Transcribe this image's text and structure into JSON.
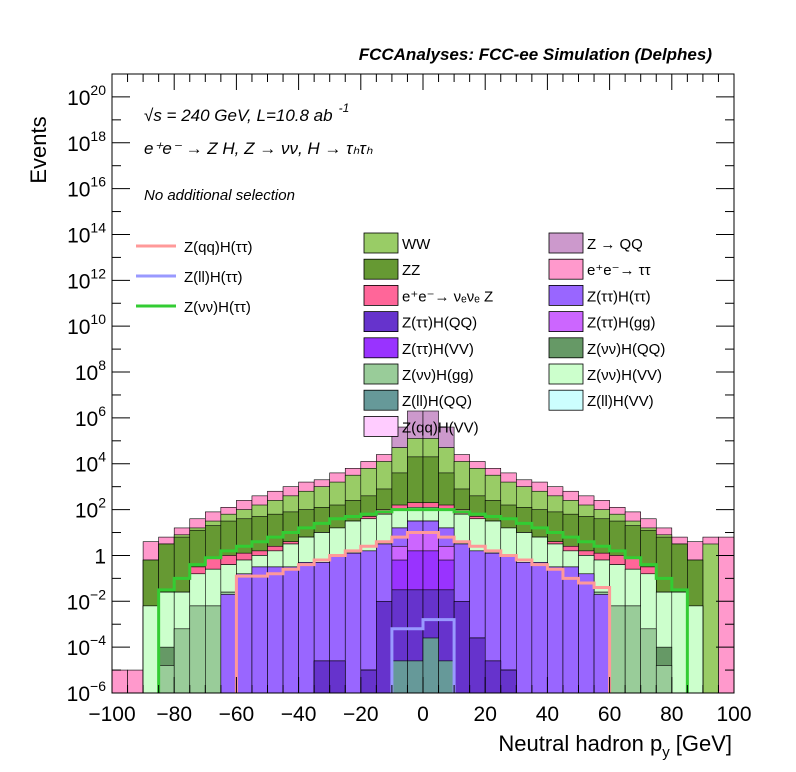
{
  "chart_data": {
    "type": "histogram",
    "title": "FCCAnalyses: FCC-ee Simulation (Delphes)",
    "xlabel": "Neutral hadron p",
    "xlabel_sub": "y",
    "xlabel_unit": "[GeV]",
    "ylabel": "Events",
    "xlim": [
      -100,
      100
    ],
    "ylim": [
      1e-06,
      1e+21
    ],
    "yscale": "log",
    "bin_width": 5,
    "x_ticks": [
      {
        "value": -100,
        "label": "−100"
      },
      {
        "value": -80,
        "label": "−80"
      },
      {
        "value": -60,
        "label": "−60"
      },
      {
        "value": -40,
        "label": "−40"
      },
      {
        "value": -20,
        "label": "−20"
      },
      {
        "value": 0,
        "label": "0"
      },
      {
        "value": 20,
        "label": "20"
      },
      {
        "value": 40,
        "label": "40"
      },
      {
        "value": 60,
        "label": "60"
      },
      {
        "value": 80,
        "label": "80"
      },
      {
        "value": 100,
        "label": "100"
      }
    ],
    "y_ticks": [
      {
        "value": 1e-06,
        "base": "10",
        "exp": "−6"
      },
      {
        "value": 0.0001,
        "base": "10",
        "exp": "−4"
      },
      {
        "value": 0.01,
        "base": "10",
        "exp": "−2"
      },
      {
        "value": 1,
        "base": "1",
        "exp": ""
      },
      {
        "value": 100.0,
        "base": "10",
        "exp": "2"
      },
      {
        "value": 10000.0,
        "base": "10",
        "exp": "4"
      },
      {
        "value": 1000000.0,
        "base": "10",
        "exp": "6"
      },
      {
        "value": 100000000.0,
        "base": "10",
        "exp": "8"
      },
      {
        "value": 10000000000.0,
        "base": "10",
        "exp": "10"
      },
      {
        "value": 1000000000000.0,
        "base": "10",
        "exp": "12"
      },
      {
        "value": 100000000000000.0,
        "base": "10",
        "exp": "14"
      },
      {
        "value": 1e+16,
        "base": "10",
        "exp": "16"
      },
      {
        "value": 1e+18,
        "base": "10",
        "exp": "18"
      },
      {
        "value": 1e+20,
        "base": "10",
        "exp": "20"
      }
    ],
    "annotations": {
      "energy": "√s = 240 GeV, L=10.8 ab",
      "energy_sup": "-1",
      "process": "e⁺e⁻ → Z H, Z → νν, H → τₕτₕ",
      "selection": "No additional selection"
    },
    "stack_note": "Stacked backgrounds listed bottom to top; values are log10 of each layer's cumulative (stacked) top edge per 5 GeV bin from -100 to 100; null = empty bin",
    "stacked": [
      {
        "name": "Z(ll)H(VV)",
        "color": "#ccfefe",
        "log10_top": [
          null,
          null,
          null,
          null,
          null,
          null,
          null,
          null,
          null,
          null,
          null,
          null,
          null,
          null,
          null,
          null,
          null,
          null,
          -6,
          -6,
          -6,
          -6,
          null,
          null,
          null,
          null,
          null,
          null,
          null,
          null,
          null,
          null,
          null,
          null,
          null,
          null,
          null,
          null,
          null,
          null
        ]
      },
      {
        "name": "Z(ll)H(QQ)",
        "color": "#669999",
        "log10_top": [
          null,
          null,
          null,
          null,
          null,
          null,
          null,
          null,
          null,
          null,
          null,
          null,
          null,
          null,
          null,
          null,
          null,
          null,
          -4.6,
          -4.6,
          -3.6,
          -4.6,
          null,
          null,
          null,
          null,
          null,
          null,
          null,
          null,
          null,
          null,
          null,
          null,
          null,
          null,
          null,
          null,
          null,
          null
        ]
      },
      {
        "name": "Z(ττ)H(QQ)",
        "color": "#6633cc",
        "log10_top": [
          null,
          null,
          null,
          null,
          null,
          null,
          null,
          null,
          null,
          null,
          null,
          null,
          null,
          -4.6,
          -4.6,
          null,
          -5,
          -2,
          -1.5,
          -1.5,
          -1.5,
          -1.5,
          -2,
          -3.6,
          -4.6,
          -5,
          null,
          null,
          null,
          null,
          null,
          null,
          null,
          null,
          null,
          null,
          null,
          null,
          null,
          null
        ]
      },
      {
        "name": "Z(ττ)H(VV)",
        "color": "#9933ff",
        "log10_top": [
          null,
          null,
          null,
          null,
          null,
          null,
          null,
          null,
          null,
          null,
          null,
          null,
          null,
          -4.6,
          -4.6,
          null,
          -5,
          -2,
          -0.2,
          0.2,
          0.2,
          -0.2,
          -2,
          -3.6,
          -4.6,
          -5,
          null,
          null,
          null,
          null,
          null,
          null,
          null,
          null,
          null,
          null,
          null,
          null,
          null,
          null
        ]
      },
      {
        "name": "Z(ττ)H(gg)",
        "color": "#cc66ff",
        "log10_top": [
          null,
          null,
          null,
          null,
          null,
          null,
          null,
          null,
          null,
          null,
          null,
          null,
          null,
          -4.6,
          -4.6,
          null,
          -5,
          -2,
          0.4,
          1.0,
          1.0,
          0.4,
          -2,
          -3.6,
          -4.6,
          -5,
          null,
          null,
          null,
          null,
          null,
          null,
          null,
          null,
          null,
          null,
          null,
          null,
          null,
          null
        ]
      },
      {
        "name": "Z(ττ)H(ττ)",
        "color": "#9966ff",
        "log10_top": [
          null,
          null,
          null,
          null,
          null,
          null,
          null,
          -1.7,
          -0.8,
          -0.5,
          -0.5,
          -0.5,
          -0.3,
          -0.3,
          0,
          0.1,
          0.2,
          0.5,
          1.2,
          1.5,
          1.5,
          1.2,
          0.5,
          0.2,
          0.1,
          0,
          -0.3,
          -0.3,
          -0.5,
          -0.5,
          -0.8,
          -1.7,
          null,
          null,
          null,
          null,
          null,
          null,
          null,
          null
        ]
      },
      {
        "name": "Z(νν)H(gg)",
        "color": "#99cc99",
        "log10_top": [
          null,
          null,
          null,
          -4.8,
          -3.2,
          -2.2,
          -2.2,
          -1.6,
          -0.8,
          -0.5,
          -0.5,
          -0.5,
          -0.3,
          -0.3,
          0,
          0.1,
          0.2,
          0.5,
          1.2,
          1.5,
          1.5,
          1.2,
          0.5,
          0.2,
          0.1,
          0,
          -0.3,
          -0.3,
          -0.5,
          -0.5,
          -0.8,
          -1.6,
          -2.2,
          -2.2,
          -3.2,
          -4.8,
          null,
          null,
          null,
          null
        ]
      },
      {
        "name": "Z(νν)H(QQ)",
        "color": "#669966",
        "log10_top": [
          null,
          null,
          null,
          -4,
          -3.2,
          -2.2,
          -2.2,
          -1.6,
          -0.8,
          -0.5,
          -0.5,
          -0.5,
          -0.3,
          -0.3,
          0,
          0.1,
          0.2,
          0.5,
          1.2,
          1.5,
          1.5,
          1.2,
          0.5,
          0.2,
          0.1,
          0,
          -0.3,
          -0.3,
          -0.5,
          -0.5,
          -0.8,
          -1.6,
          -2.2,
          -2.2,
          -3.2,
          -4,
          null,
          null,
          null,
          null
        ]
      },
      {
        "name": "Z(νν)H(VV)",
        "color": "#ccffcc",
        "log10_top": [
          null,
          null,
          -2.2,
          -1.6,
          -1.6,
          -0.8,
          -0.6,
          -0.4,
          -0.2,
          0,
          0.2,
          0.5,
          0.8,
          1.0,
          1.2,
          1.5,
          1.6,
          1.8,
          2.0,
          2.1,
          2.1,
          2.0,
          1.8,
          1.6,
          1.5,
          1.2,
          1.0,
          0.8,
          0.5,
          0.2,
          0,
          -0.2,
          -0.4,
          -0.6,
          -0.8,
          -1.6,
          -1.6,
          -2.2,
          null,
          null
        ]
      },
      {
        "name": "Z(qq)H(VV)",
        "color": "#ffccff",
        "log10_top": [
          null,
          null,
          -2.2,
          -1.6,
          -1.6,
          -0.8,
          -0.6,
          -0.4,
          -0.2,
          0,
          0.2,
          0.5,
          0.8,
          1.0,
          1.2,
          1.5,
          1.6,
          1.8,
          2.0,
          2.1,
          2.1,
          2.0,
          1.8,
          1.6,
          1.5,
          1.2,
          1.0,
          0.8,
          0.5,
          0.2,
          0,
          -0.2,
          -0.4,
          -0.6,
          -0.8,
          -1.6,
          -1.6,
          -2.2,
          null,
          null
        ]
      },
      {
        "name": "e⁺e⁻→ νₑνₑ Z",
        "color": "#ff6699",
        "log10_top": [
          null,
          null,
          -2.2,
          -1.6,
          -1.6,
          -0.5,
          -0.1,
          0,
          0.1,
          0.2,
          0.4,
          0.6,
          0.8,
          1.0,
          1.2,
          1.5,
          1.7,
          2.0,
          2.2,
          2.3,
          2.3,
          2.2,
          2.0,
          1.7,
          1.5,
          1.2,
          1.0,
          0.8,
          0.6,
          0.4,
          0.2,
          0.1,
          0,
          -0.1,
          -0.5,
          -1.6,
          -1.6,
          -2.2,
          null,
          null
        ]
      },
      {
        "name": "ZZ",
        "color": "#669933",
        "log10_top": [
          null,
          null,
          -0.2,
          0.5,
          0.8,
          1.1,
          1.3,
          1.5,
          1.6,
          1.7,
          1.8,
          1.9,
          2.0,
          2.1,
          2.2,
          2.4,
          2.6,
          2.9,
          3.6,
          4.3,
          4.3,
          3.6,
          2.9,
          2.6,
          2.4,
          2.2,
          2.1,
          2.0,
          1.9,
          1.8,
          1.7,
          1.6,
          1.5,
          1.3,
          1.1,
          0.8,
          0.5,
          -0.2,
          null,
          null
        ]
      },
      {
        "name": "WW",
        "color": "#99cc66",
        "log10_top": [
          null,
          null,
          -0.2,
          0.5,
          0.9,
          1.2,
          1.5,
          1.8,
          2.0,
          2.2,
          2.4,
          2.6,
          2.8,
          3.0,
          3.2,
          3.5,
          3.8,
          4.1,
          4.7,
          5.1,
          5.1,
          4.7,
          4.1,
          3.8,
          3.5,
          3.2,
          3.0,
          2.8,
          2.6,
          2.4,
          2.2,
          2.0,
          1.8,
          1.5,
          1.2,
          0.9,
          0.5,
          -0.2,
          0.5,
          null
        ]
      },
      {
        "name": "e⁺e⁻→ ττ",
        "color": "#ff99cc",
        "log10_top": [
          -5,
          -5,
          0.6,
          0.8,
          1.2,
          1.6,
          1.9,
          2.1,
          2.4,
          2.6,
          2.8,
          3.0,
          3.2,
          3.3,
          3.6,
          3.8,
          4.1,
          4.4,
          4.7,
          5.0,
          5.0,
          4.7,
          4.4,
          4.1,
          3.8,
          3.6,
          3.3,
          3.2,
          3.0,
          2.8,
          2.6,
          2.4,
          2.1,
          1.9,
          1.6,
          1.2,
          0.8,
          0.6,
          0.8,
          0.8
        ]
      },
      {
        "name": "Z → QQ",
        "color": "#cc99cc",
        "log10_top": [
          null,
          null,
          null,
          null,
          null,
          null,
          null,
          null,
          null,
          null,
          null,
          null,
          null,
          null,
          null,
          null,
          null,
          null,
          5.6,
          6.3,
          6.3,
          5.6,
          null,
          null,
          null,
          null,
          null,
          null,
          null,
          null,
          null,
          null,
          null,
          null,
          null,
          null,
          null,
          null,
          null,
          null
        ]
      }
    ],
    "signals": [
      {
        "name": "Z(qq)H(ττ)",
        "color": "#ff9999",
        "log10": [
          null,
          null,
          null,
          null,
          null,
          null,
          null,
          null,
          -0.9,
          -0.9,
          -0.8,
          -0.6,
          -0.4,
          -0.2,
          0,
          0.2,
          0.4,
          0.6,
          0.8,
          1.0,
          1.0,
          0.8,
          0.6,
          0.4,
          0.2,
          0,
          -0.2,
          -0.4,
          -0.6,
          -1.0,
          -1.2,
          -1.4,
          null,
          null,
          null,
          null,
          null,
          null,
          null,
          null
        ]
      },
      {
        "name": "Z(ll)H(ττ)",
        "color": "#9999ff",
        "log10": [
          null,
          null,
          null,
          null,
          null,
          null,
          null,
          null,
          null,
          null,
          null,
          null,
          null,
          null,
          null,
          null,
          null,
          null,
          -3.2,
          -3.2,
          -2.8,
          -2.8,
          null,
          null,
          null,
          null,
          null,
          null,
          null,
          null,
          null,
          null,
          null,
          null,
          null,
          null,
          null,
          null,
          null,
          null
        ]
      },
      {
        "name": "Z(νν)H(ττ)",
        "color": "#33cc33",
        "log10": [
          null,
          null,
          null,
          -1.5,
          -1.0,
          -0.4,
          -0.1,
          0.2,
          0.4,
          0.6,
          0.8,
          1.0,
          1.2,
          1.4,
          1.6,
          1.7,
          1.8,
          1.9,
          2.0,
          2.0,
          2.0,
          2.0,
          1.9,
          1.8,
          1.7,
          1.6,
          1.4,
          1.2,
          1.0,
          0.8,
          0.6,
          0.4,
          0.2,
          -0.1,
          -0.4,
          -1.0,
          -1.5,
          null,
          null,
          null
        ]
      }
    ],
    "legend": {
      "signals_column": [
        "Z(qq)H(ττ)",
        "Z(ll)H(ττ)",
        "Z(νν)H(ττ)"
      ],
      "column_1": [
        "WW",
        "ZZ",
        "e⁺e⁻→ νₑνₑ Z",
        "Z(ττ)H(QQ)",
        "Z(ττ)H(VV)",
        "Z(νν)H(gg)",
        "Z(ll)H(QQ)",
        "Z(qq)H(VV)"
      ],
      "column_2": [
        "Z → QQ",
        "e⁺e⁻→ ττ",
        "Z(ττ)H(ττ)",
        "Z(ττ)H(gg)",
        "Z(νν)H(QQ)",
        "Z(νν)H(VV)",
        "Z(ll)H(VV)"
      ]
    }
  }
}
